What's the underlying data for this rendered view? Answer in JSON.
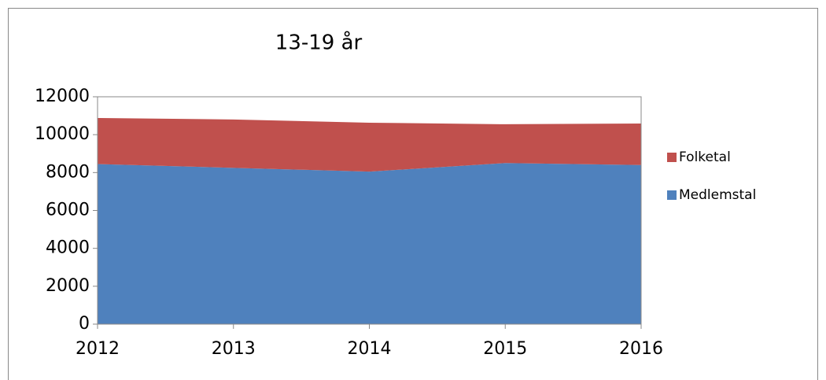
{
  "chart_data": {
    "type": "area",
    "stacked": true,
    "title": "13-19 år",
    "categories": [
      "2012",
      "2013",
      "2014",
      "2015",
      "2016"
    ],
    "series": [
      {
        "name": "Medlemstal",
        "color": "#4f81bd",
        "values": [
          8450,
          8250,
          8050,
          8500,
          8400
        ]
      },
      {
        "name": "Folketal",
        "color": "#c0504d",
        "values": [
          2430,
          2550,
          2580,
          2050,
          2190
        ]
      }
    ],
    "ylim": [
      0,
      12000
    ],
    "yticks": [
      0,
      2000,
      4000,
      6000,
      8000,
      10000,
      12000
    ],
    "legend": "right"
  }
}
